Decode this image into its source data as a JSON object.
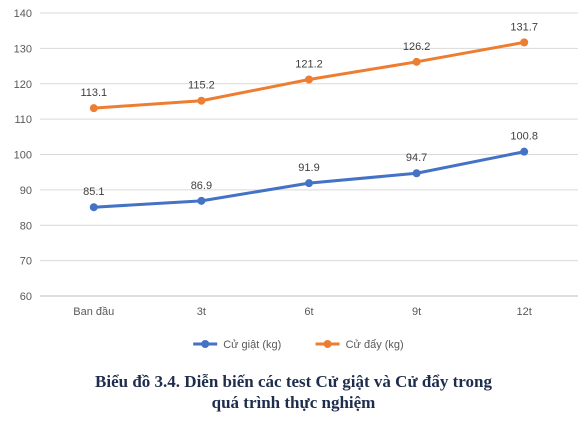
{
  "chart_data": {
    "type": "line",
    "categories": [
      "Ban đầu",
      "3t",
      "6t",
      "9t",
      "12t"
    ],
    "series": [
      {
        "name": "Cử giật (kg)",
        "values": [
          85.1,
          86.9,
          91.9,
          94.7,
          100.8
        ],
        "color": "#4472C4"
      },
      {
        "name": "Cử đẩy (kg)",
        "values": [
          113.1,
          115.2,
          121.2,
          126.2,
          131.7
        ],
        "color": "#ED7D31"
      }
    ],
    "ylim": [
      60,
      140
    ],
    "yticks": [
      60,
      70,
      80,
      90,
      100,
      110,
      120,
      130,
      140
    ],
    "grid": true,
    "legend": "bottom",
    "data_labels": true
  },
  "caption": {
    "line1": "Biểu đồ 3.4. Diễn biến các test Cử giật và Cử đẩy trong",
    "line2": "quá trình thực nghiệm"
  }
}
